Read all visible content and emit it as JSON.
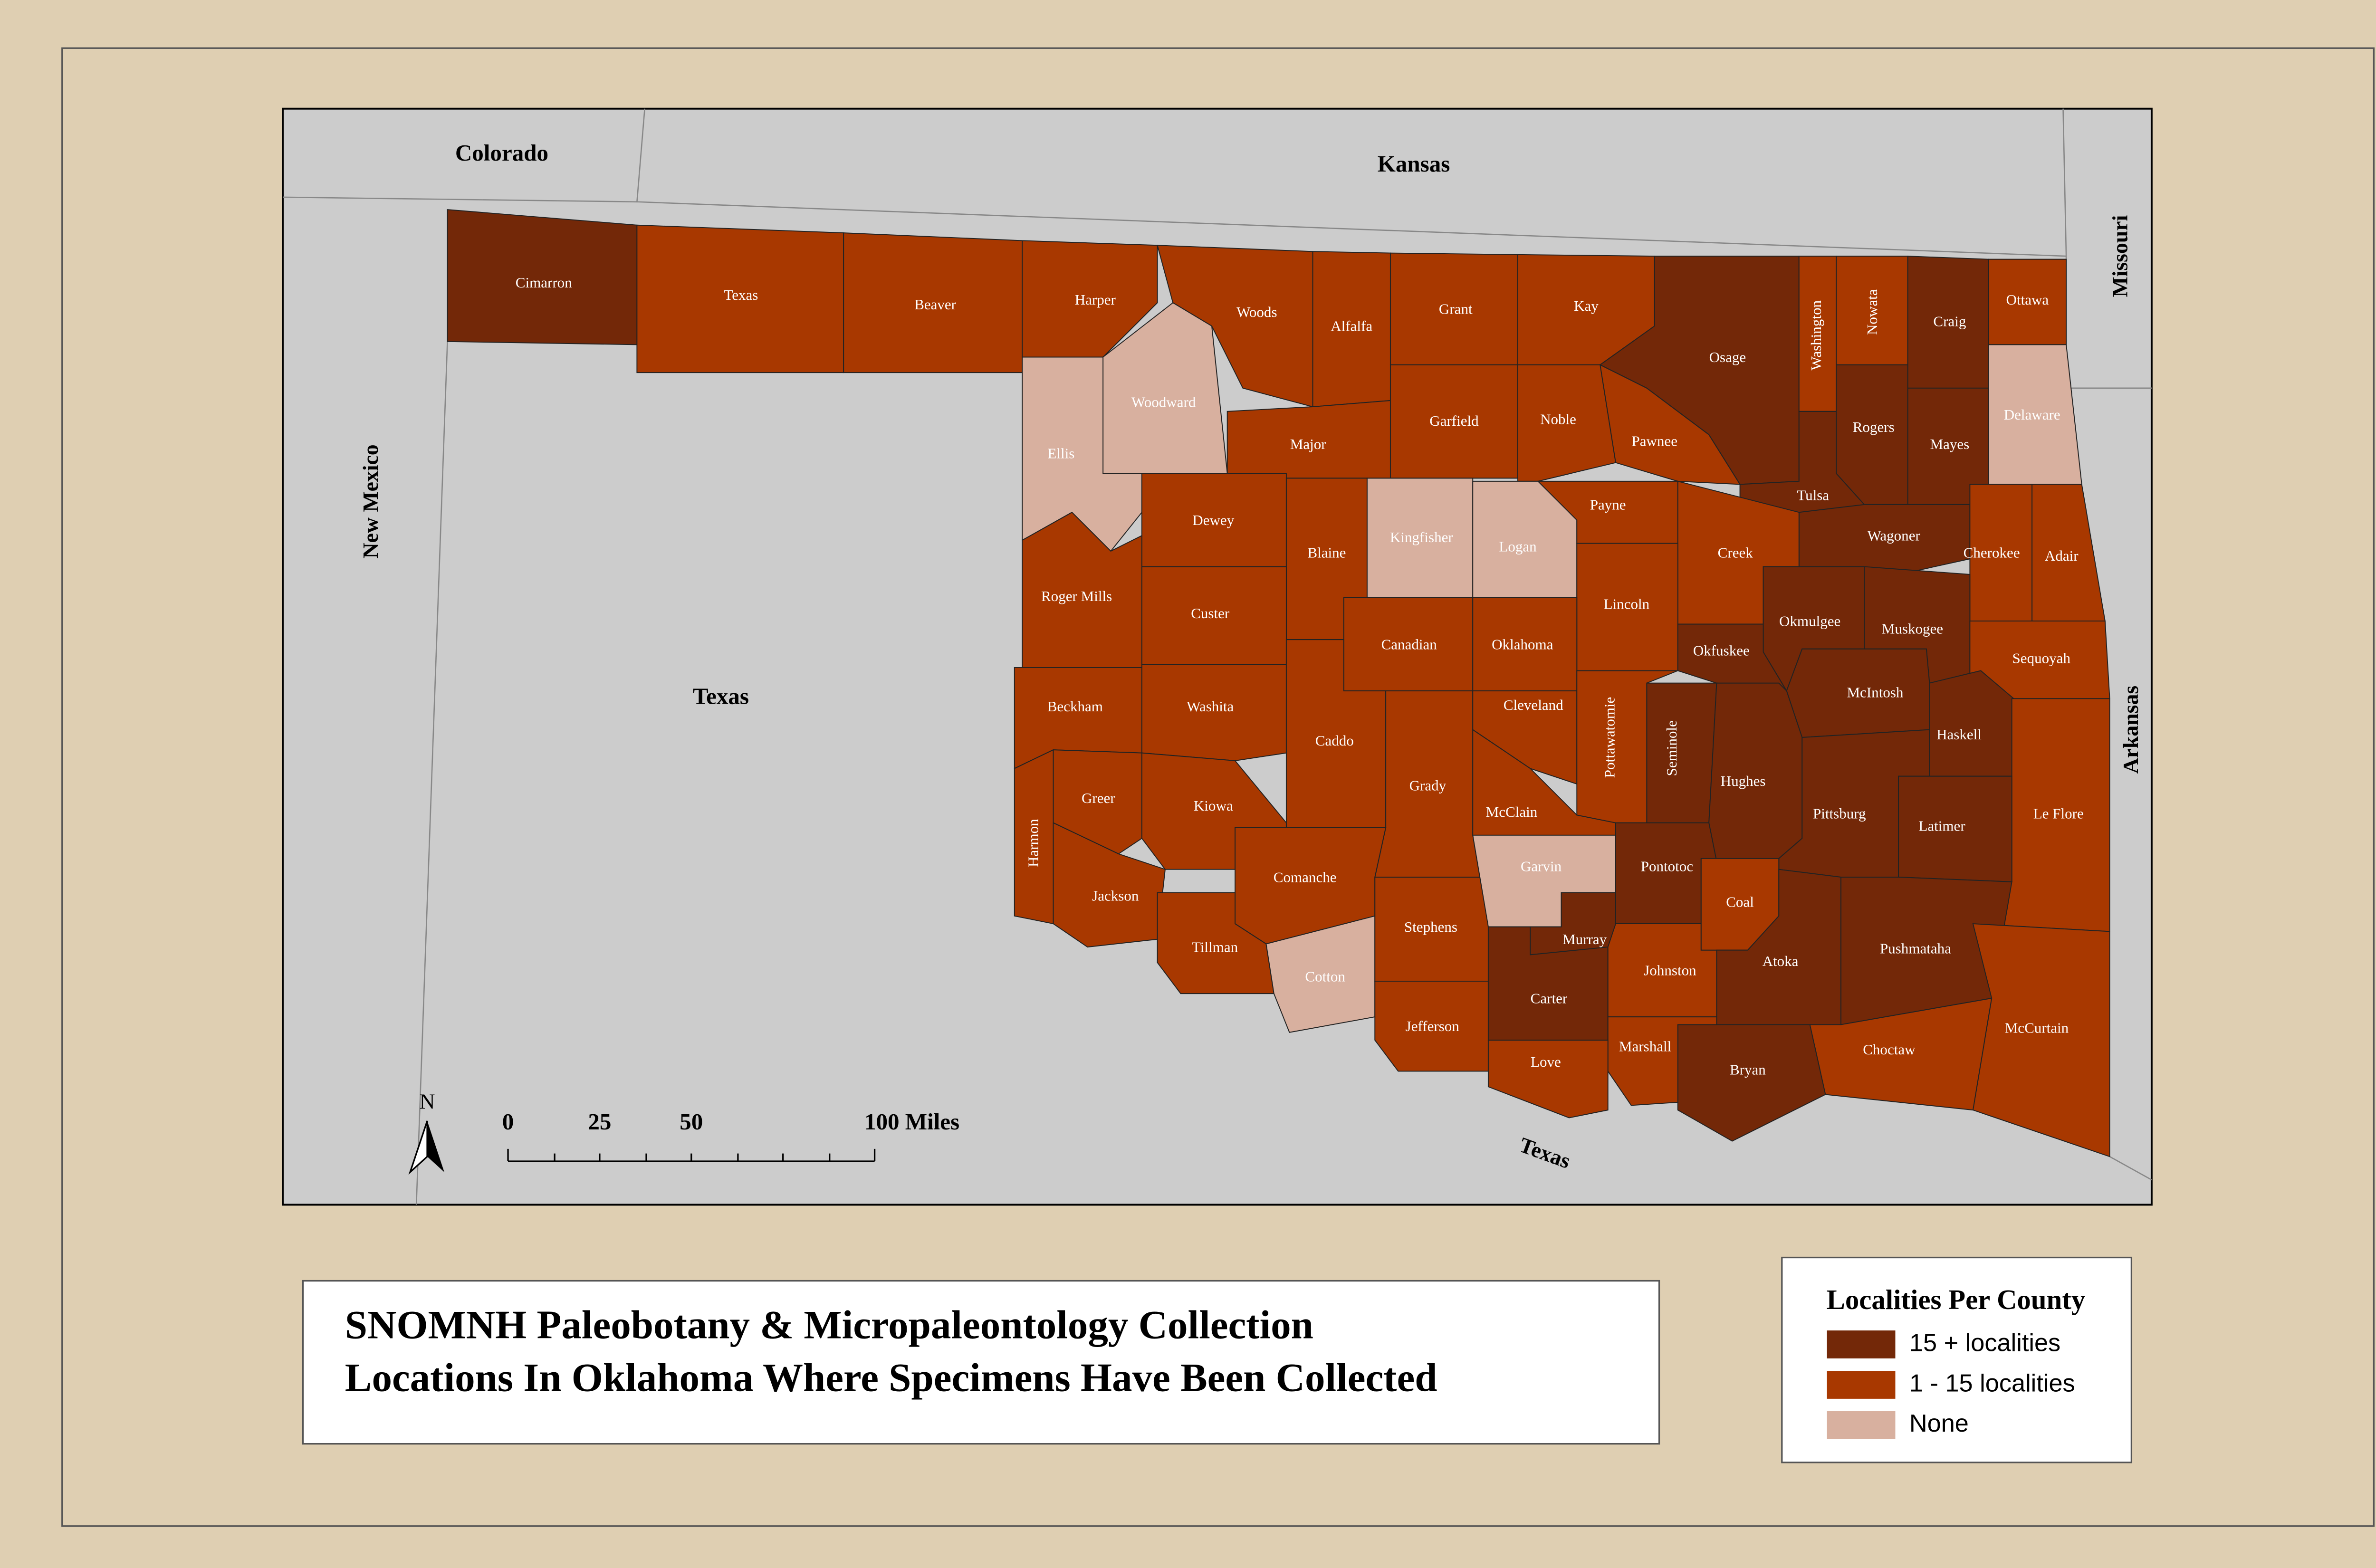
{
  "title": [
    "SNOMNH Paleobotany & Micropaleontology Collection",
    "Locations In Oklahoma Where Specimens Have Been Collected"
  ],
  "legend": {
    "title": "Localities Per County",
    "items": [
      {
        "label": "15 + localities",
        "color": "#732808"
      },
      {
        "label": "1 - 15 localities",
        "color": "#a83800"
      },
      {
        "label": "None",
        "color": "#d8b09f"
      }
    ]
  },
  "neighbors": [
    "Colorado",
    "Kansas",
    "Missouri",
    "New Mexico",
    "Texas",
    "Arkansas",
    "Texas"
  ],
  "north_arrow": "N",
  "scale_bar": [
    "0",
    "25",
    "50",
    "100 Miles"
  ],
  "counties": [
    {
      "name": "Cimarron",
      "color": "#732808"
    },
    {
      "name": "Texas",
      "color": "#a83800"
    },
    {
      "name": "Beaver",
      "color": "#a83800"
    },
    {
      "name": "Harper",
      "color": "#a83800"
    },
    {
      "name": "Woods",
      "color": "#a83800"
    },
    {
      "name": "Alfalfa",
      "color": "#a83800"
    },
    {
      "name": "Grant",
      "color": "#a83800"
    },
    {
      "name": "Kay",
      "color": "#a83800"
    },
    {
      "name": "Osage",
      "color": "#732808"
    },
    {
      "name": "Washington",
      "color": "#a83800"
    },
    {
      "name": "Nowata",
      "color": "#a83800"
    },
    {
      "name": "Craig",
      "color": "#732808"
    },
    {
      "name": "Ottawa",
      "color": "#a83800"
    },
    {
      "name": "Delaware",
      "color": "#d8b09f"
    },
    {
      "name": "Mayes",
      "color": "#732808"
    },
    {
      "name": "Rogers",
      "color": "#732808"
    },
    {
      "name": "Ellis",
      "color": "#d8b09f"
    },
    {
      "name": "Woodward",
      "color": "#d8b09f"
    },
    {
      "name": "Major",
      "color": "#a83800"
    },
    {
      "name": "Garfield",
      "color": "#a83800"
    },
    {
      "name": "Noble",
      "color": "#a83800"
    },
    {
      "name": "Pawnee",
      "color": "#a83800"
    },
    {
      "name": "Tulsa",
      "color": "#732808"
    },
    {
      "name": "Wagoner",
      "color": "#732808"
    },
    {
      "name": "Cherokee",
      "color": "#a83800"
    },
    {
      "name": "Adair",
      "color": "#a83800"
    },
    {
      "name": "Dewey",
      "color": "#a83800"
    },
    {
      "name": "Blaine",
      "color": "#a83800"
    },
    {
      "name": "Kingfisher",
      "color": "#d8b09f"
    },
    {
      "name": "Logan",
      "color": "#d8b09f"
    },
    {
      "name": "Payne",
      "color": "#a83800"
    },
    {
      "name": "Creek",
      "color": "#a83800"
    },
    {
      "name": "Lincoln",
      "color": "#a83800"
    },
    {
      "name": "Roger Mills",
      "color": "#a83800"
    },
    {
      "name": "Custer",
      "color": "#a83800"
    },
    {
      "name": "Canadian",
      "color": "#a83800"
    },
    {
      "name": "Oklahoma",
      "color": "#a83800"
    },
    {
      "name": "Okmulgee",
      "color": "#732808"
    },
    {
      "name": "Muskogee",
      "color": "#732808"
    },
    {
      "name": "Sequoyah",
      "color": "#a83800"
    },
    {
      "name": "Okfuskee",
      "color": "#732808"
    },
    {
      "name": "Beckham",
      "color": "#a83800"
    },
    {
      "name": "Washita",
      "color": "#a83800"
    },
    {
      "name": "Caddo",
      "color": "#a83800"
    },
    {
      "name": "Grady",
      "color": "#a83800"
    },
    {
      "name": "Cleveland",
      "color": "#a83800"
    },
    {
      "name": "McClain",
      "color": "#a83800"
    },
    {
      "name": "Pottawatomie",
      "color": "#a83800"
    },
    {
      "name": "Seminole",
      "color": "#732808"
    },
    {
      "name": "McIntosh",
      "color": "#732808"
    },
    {
      "name": "Haskell",
      "color": "#732808"
    },
    {
      "name": "Le Flore",
      "color": "#a83800"
    },
    {
      "name": "Hughes",
      "color": "#732808"
    },
    {
      "name": "Pittsburg",
      "color": "#732808"
    },
    {
      "name": "Latimer",
      "color": "#732808"
    },
    {
      "name": "Greer",
      "color": "#a83800"
    },
    {
      "name": "Harmon",
      "color": "#a83800"
    },
    {
      "name": "Kiowa",
      "color": "#a83800"
    },
    {
      "name": "Jackson",
      "color": "#a83800"
    },
    {
      "name": "Comanche",
      "color": "#a83800"
    },
    {
      "name": "Tillman",
      "color": "#a83800"
    },
    {
      "name": "Cotton",
      "color": "#d8b09f"
    },
    {
      "name": "Stephens",
      "color": "#a83800"
    },
    {
      "name": "Jefferson",
      "color": "#a83800"
    },
    {
      "name": "Garvin",
      "color": "#d8b09f"
    },
    {
      "name": "Pontotoc",
      "color": "#732808"
    },
    {
      "name": "Murray",
      "color": "#732808"
    },
    {
      "name": "Carter",
      "color": "#732808"
    },
    {
      "name": "Johnston",
      "color": "#a83800"
    },
    {
      "name": "Coal",
      "color": "#a83800"
    },
    {
      "name": "Atoka",
      "color": "#732808"
    },
    {
      "name": "Pushmataha",
      "color": "#732808"
    },
    {
      "name": "McCurtain",
      "color": "#a83800"
    },
    {
      "name": "Choctaw",
      "color": "#a83800"
    },
    {
      "name": "Bryan",
      "color": "#732808"
    },
    {
      "name": "Marshall",
      "color": "#a83800"
    },
    {
      "name": "Love",
      "color": "#a83800"
    }
  ]
}
